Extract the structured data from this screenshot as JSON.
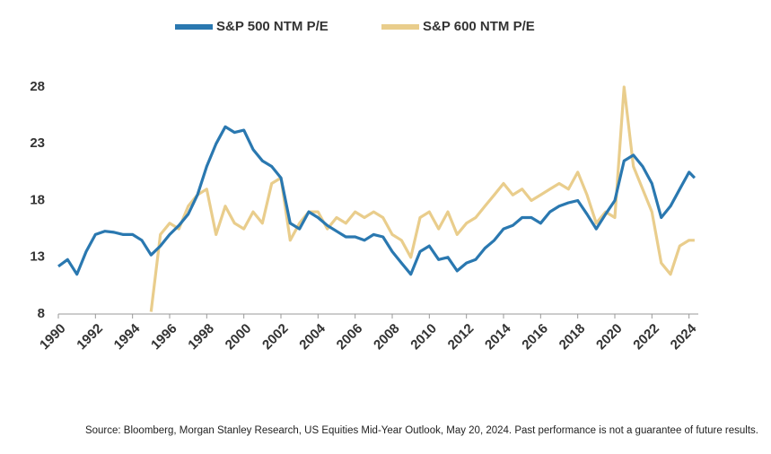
{
  "chart_data": {
    "type": "line",
    "x": [
      1990,
      1990.5,
      1991,
      1991.5,
      1992,
      1992.5,
      1993,
      1993.5,
      1994,
      1994.5,
      1995,
      1995.5,
      1996,
      1996.5,
      1997,
      1997.5,
      1998,
      1998.5,
      1999,
      1999.5,
      2000,
      2000.5,
      2001,
      2001.5,
      2002,
      2002.5,
      2003,
      2003.5,
      2004,
      2004.5,
      2005,
      2005.5,
      2006,
      2006.5,
      2007,
      2007.5,
      2008,
      2008.5,
      2009,
      2009.5,
      2010,
      2010.5,
      2011,
      2011.5,
      2012,
      2012.5,
      2013,
      2013.5,
      2014,
      2014.5,
      2015,
      2015.5,
      2016,
      2016.5,
      2017,
      2017.5,
      2018,
      2018.5,
      2019,
      2019.5,
      2020,
      2020.5,
      2021,
      2021.5,
      2022,
      2022.5,
      2023,
      2023.5,
      2024,
      2024.3
    ],
    "series": [
      {
        "name": "S&P 500 NTM P/E",
        "color": "#2a78b0",
        "values": [
          12.2,
          12.8,
          11.5,
          13.5,
          15.0,
          15.3,
          15.2,
          15.0,
          15.0,
          14.5,
          13.2,
          14.0,
          15.0,
          15.8,
          16.8,
          18.5,
          21.0,
          23.0,
          24.5,
          24.0,
          24.2,
          22.5,
          21.5,
          21.0,
          20.0,
          16.0,
          15.5,
          17.0,
          16.5,
          15.8,
          15.3,
          14.8,
          14.8,
          14.5,
          15.0,
          14.8,
          13.5,
          12.5,
          11.5,
          13.5,
          14.0,
          12.8,
          13.0,
          11.8,
          12.5,
          12.8,
          13.8,
          14.5,
          15.5,
          15.8,
          16.5,
          16.5,
          16.0,
          17.0,
          17.5,
          17.8,
          18.0,
          16.8,
          15.5,
          16.8,
          18.0,
          21.5,
          22.0,
          21.0,
          19.5,
          16.5,
          17.5,
          19.0,
          20.5,
          20.0
        ]
      },
      {
        "name": "S&P 600 NTM P/E",
        "color": "#e9cd8c",
        "values": [
          null,
          null,
          null,
          null,
          null,
          null,
          null,
          null,
          null,
          null,
          8.2,
          15.0,
          16.0,
          15.5,
          17.5,
          18.5,
          19.0,
          15.0,
          17.5,
          16.0,
          15.5,
          17.0,
          16.0,
          19.5,
          20.0,
          14.5,
          16.0,
          17.0,
          17.0,
          15.5,
          16.5,
          16.0,
          17.0,
          16.5,
          17.0,
          16.5,
          15.0,
          14.5,
          13.0,
          16.5,
          17.0,
          15.5,
          17.0,
          15.0,
          16.0,
          16.5,
          17.5,
          18.5,
          19.5,
          18.5,
          19.0,
          18.0,
          18.5,
          19.0,
          19.5,
          19.0,
          20.5,
          18.5,
          16.0,
          17.0,
          16.5,
          28.0,
          21.0,
          19.0,
          17.0,
          12.5,
          11.5,
          14.0,
          14.5,
          14.5
        ]
      }
    ],
    "xlim": [
      1990,
      2024.5
    ],
    "xticks": [
      1990,
      1992,
      1994,
      1996,
      1998,
      2000,
      2002,
      2004,
      2006,
      2008,
      2010,
      2012,
      2014,
      2016,
      2018,
      2020,
      2022,
      2024
    ],
    "ylim": [
      8,
      28
    ],
    "yticks": [
      8,
      13,
      18,
      23,
      28
    ],
    "grid": false,
    "legend": "top",
    "source": "Source: Bloomberg, Morgan Stanley Research, US Equities Mid-Year Outlook, May 20, 2024. Past performance is not a guarantee of future results."
  }
}
